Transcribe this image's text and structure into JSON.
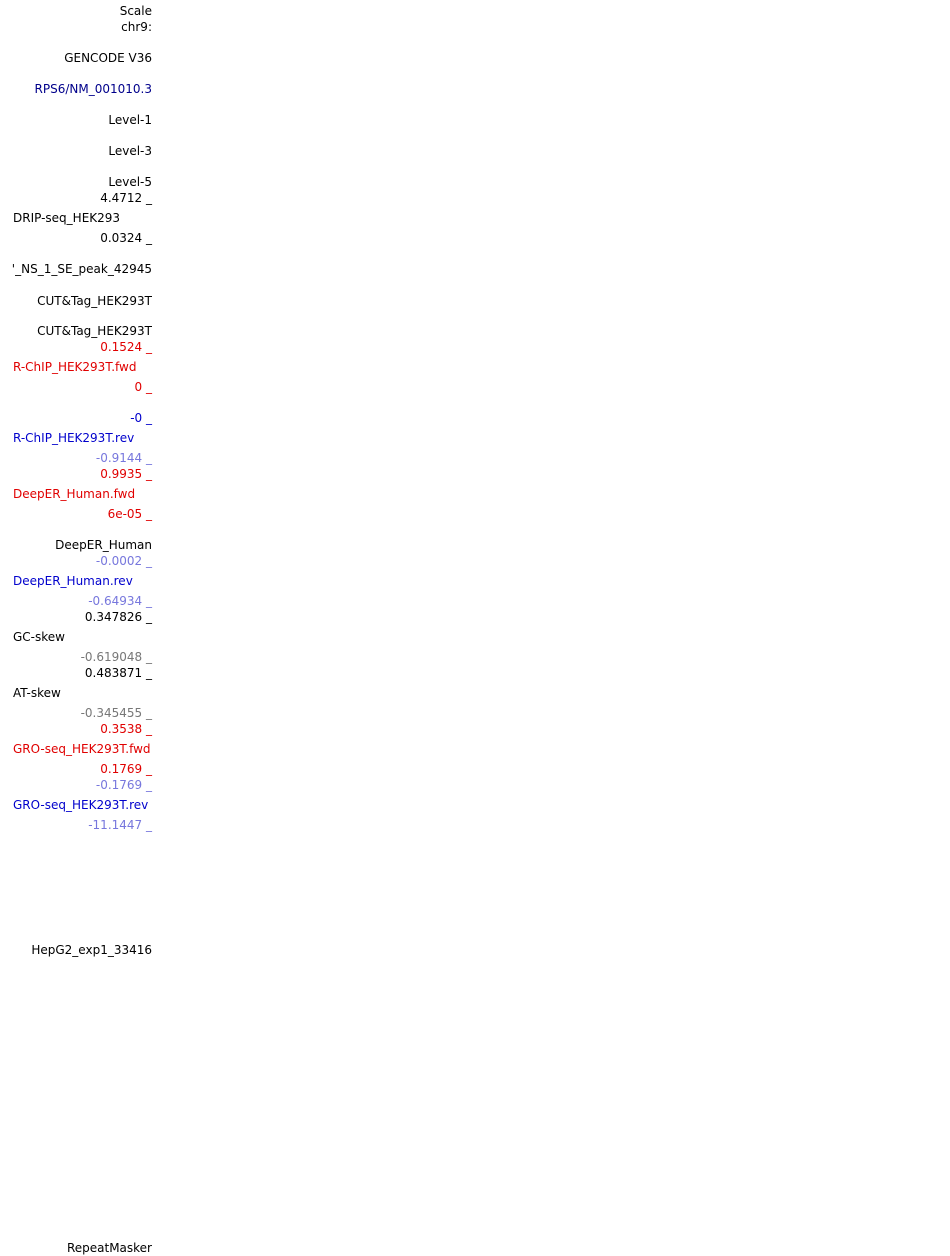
{
  "colors": {
    "black": "#000000",
    "navy": "#00008b",
    "red": "#e00000",
    "blue": "#0000cc",
    "lightblue": "#7777dd",
    "gray": "#777777"
  },
  "labels": {
    "scale": "Scale",
    "chrom": "chr9:",
    "gencode": "GENCODE V36",
    "refseq": "RPS6/NM_001010.3",
    "level1": "Level-1",
    "level3": "Level-3",
    "level5": "Level-5",
    "drip_max": "4.4712 _",
    "drip_name": "DRIP-seq_HEK293",
    "drip_min": "0.0324 _",
    "peak_name": "'_NS_1_SE_peak_42945",
    "cuttag1": "CUT&Tag_HEK293T",
    "cuttag2": "CUT&Tag_HEK293T",
    "rchip_fwd_max": "0.1524 _",
    "rchip_fwd_name": "R-ChIP_HEK293T.fwd",
    "rchip_fwd_min": "0 _",
    "rchip_rev_max": "-0 _",
    "rchip_rev_name": "R-ChIP_HEK293T.rev",
    "rchip_rev_min": "-0.9144 _",
    "deeper_fwd_max": "0.9935 _",
    "deeper_fwd_name": "DeepER_Human.fwd",
    "deeper_fwd_min": "6e-05 _",
    "deeper_name": "DeepER_Human",
    "deeper_rev_max": "-0.0002 _",
    "deeper_rev_name": "DeepER_Human.rev",
    "deeper_rev_min": "-0.64934 _",
    "gc_max": "0.347826 _",
    "gc_name": "GC-skew",
    "gc_min": "-0.619048 _",
    "at_max": "0.483871 _",
    "at_name": "AT-skew",
    "at_min": "-0.345455 _",
    "gro_fwd_max": "0.3538 _",
    "gro_fwd_name": "GRO-seq_HEK293T.fwd",
    "gro_fwd_min": "0.1769 _",
    "gro_rev_max": "-0.1769 _",
    "gro_rev_name": "GRO-seq_HEK293T.rev",
    "gro_rev_min": "-11.1447 _",
    "hepg2": "HepG2_exp1_33416",
    "repeatmasker": "RepeatMasker"
  }
}
